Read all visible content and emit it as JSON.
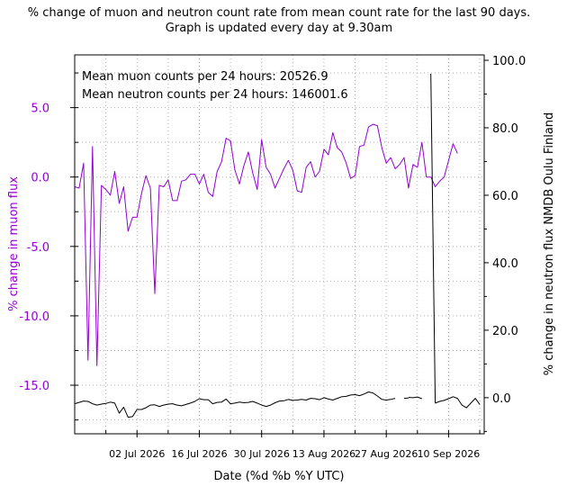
{
  "title_line1": "% change of muon and neutron count rate from mean count rate for the last 90 days.",
  "title_line2": "Graph is updated every day at 9.30am",
  "colors": {
    "muon": "#9400d3",
    "neutron": "#000000",
    "grid": "#b0b0b0"
  },
  "chart_data": {
    "type": "line",
    "xlabel": "Date (%d %b %Y UTC)",
    "ylabel_left": "% change in muon flux",
    "ylabel_right": "% change in neutron flux NMDB Oulu Finland",
    "annotations": [
      "Mean muon counts per 24 hours: 20526.9",
      "Mean neutron counts per 24 hours: 146001.6"
    ],
    "x_tick_labels": [
      "02 Jul 2026",
      "16 Jul 2026",
      "30 Jul 2026",
      "13 Aug 2026",
      "27 Aug 2026",
      "10 Sep 2026"
    ],
    "x_tick_days": [
      14,
      28,
      42,
      56,
      70,
      84
    ],
    "x_range_days": [
      0,
      92
    ],
    "left_axis": {
      "ylim": [
        -18.5,
        8.8
      ],
      "ticks": [
        5.0,
        0.0,
        -5.0,
        -10.0,
        -15.0
      ],
      "tick_labels": [
        "5.0",
        "0.0",
        "-5.0",
        "-10.0",
        "-15.0"
      ]
    },
    "right_axis": {
      "ylim": [
        -10.7,
        101.6
      ],
      "ticks": [
        100.0,
        80.0,
        60.0,
        40.0,
        20.0,
        0.0
      ],
      "tick_labels": [
        "100.0",
        "80.0",
        "60.0",
        "40.0",
        "20.0",
        "0.0"
      ]
    },
    "grid": true,
    "legend": "none",
    "series": [
      {
        "axis": "left",
        "day": [
          0,
          1,
          2,
          3,
          4,
          5,
          6,
          7,
          8,
          9,
          10,
          11,
          12,
          13,
          14,
          15,
          16,
          17,
          18,
          19,
          20,
          21,
          22,
          23,
          24,
          25,
          26,
          27,
          28,
          29,
          30,
          31,
          32,
          33,
          34,
          35,
          36,
          37,
          38,
          39,
          40,
          41,
          42,
          43,
          44,
          45,
          46,
          47,
          48,
          49,
          50,
          51,
          52,
          53,
          54,
          55,
          56,
          57,
          58,
          59,
          60,
          61,
          62,
          63,
          64,
          65,
          66,
          67,
          68,
          69,
          70,
          71,
          72,
          73,
          74,
          75,
          76,
          77,
          78,
          79,
          80,
          81,
          82,
          83,
          85,
          86,
          87,
          88,
          89,
          90,
          91
        ],
        "values": [
          -0.7,
          -0.8,
          1.0,
          -13.2,
          2.2,
          -13.6,
          -0.6,
          -0.9,
          -1.3,
          0.4,
          -1.9,
          -0.7,
          -3.9,
          -2.9,
          -2.9,
          -1.2,
          0.1,
          -0.8,
          -8.4,
          -0.6,
          -0.7,
          -0.2,
          -1.7,
          -1.7,
          -0.3,
          -0.2,
          0.2,
          0.2,
          -0.5,
          0.2,
          -1.1,
          -1.4,
          0.4,
          1.1,
          2.8,
          2.6,
          0.5,
          -0.5,
          0.8,
          1.8,
          0.3,
          -0.9,
          2.7,
          0.7,
          0.2,
          -0.8,
          -0.1,
          0.6,
          1.2,
          0.5,
          -1.0,
          -1.1,
          0.7,
          1.1,
          0.0,
          0.4,
          2.0,
          1.6,
          3.2,
          2.1,
          1.8,
          1.0,
          -0.1,
          0.1,
          2.2,
          2.3,
          3.6,
          3.8,
          3.7,
          2.1,
          1.0,
          1.4,
          0.6,
          0.9,
          1.4,
          -0.8,
          0.9,
          0.7,
          2.5,
          0.0,
          0.0,
          -0.7,
          -0.3,
          0.0,
          2.4,
          1.7
        ]
      },
      {
        "axis": "right",
        "segments": [
          {
            "day": [
              0,
              1,
              2,
              3,
              4,
              5,
              6,
              7,
              8,
              9,
              10,
              11,
              12,
              13,
              14,
              15,
              16,
              17,
              18,
              19,
              20,
              21,
              22,
              23,
              24,
              25,
              26,
              27,
              28,
              29,
              30,
              31,
              32,
              33,
              34,
              35,
              36,
              37,
              38,
              39,
              40,
              41,
              42,
              43,
              44,
              45,
              46,
              47,
              48,
              49,
              50,
              51,
              52,
              53,
              54,
              55,
              56,
              57,
              58,
              59,
              60,
              61,
              62,
              63,
              64,
              65,
              66,
              67,
              68,
              69,
              70,
              71,
              72,
              73,
              74,
              75
            ],
            "values": [
              -1.8,
              -1.4,
              -1.0,
              -1.1,
              -1.8,
              -2.2,
              -1.9,
              -1.7,
              -1.3,
              -1.6,
              -4.6,
              -2.8,
              -5.8,
              -5.6,
              -3.5,
              -3.5,
              -3.0,
              -2.2,
              -2.1,
              -2.6,
              -2.2,
              -1.9,
              -1.8,
              -2.2,
              -2.4,
              -2.0,
              -1.6,
              -1.1,
              -0.3,
              -0.6,
              -0.6,
              -1.8,
              -1.4,
              -1.3,
              -0.4,
              -1.8,
              -1.6,
              -1.3,
              -1.5,
              -1.4,
              -1.1,
              -1.6,
              -2.2,
              -2.6,
              -2.2,
              -1.5,
              -1.0,
              -0.9,
              -0.5,
              -0.8,
              -0.7,
              -0.5,
              -0.7,
              -0.2,
              -0.3,
              -0.6,
              0.0,
              -0.4,
              -0.7,
              -0.2,
              0.3,
              0.4,
              0.8,
              0.9,
              0.6,
              1.1,
              1.7,
              1.4,
              0.5,
              -0.5,
              -0.7,
              -0.5,
              -0.2,
              null,
              -0.2,
              -0.1
            ]
          },
          {
            "day": [
              75,
              76,
              77,
              78,
              79,
              80,
              81,
              82,
              83,
              84,
              85,
              86,
              87,
              88,
              89,
              90,
              91
            ],
            "values": [
              0.1,
              0.0,
              0.2,
              -0.3,
              null,
              96.0,
              -1.6,
              -1.1,
              -0.8,
              -0.3,
              0.3,
              -0.2,
              -2.2,
              -3.0,
              -1.6,
              -0.2,
              -2.0
            ]
          }
        ]
      }
    ]
  }
}
